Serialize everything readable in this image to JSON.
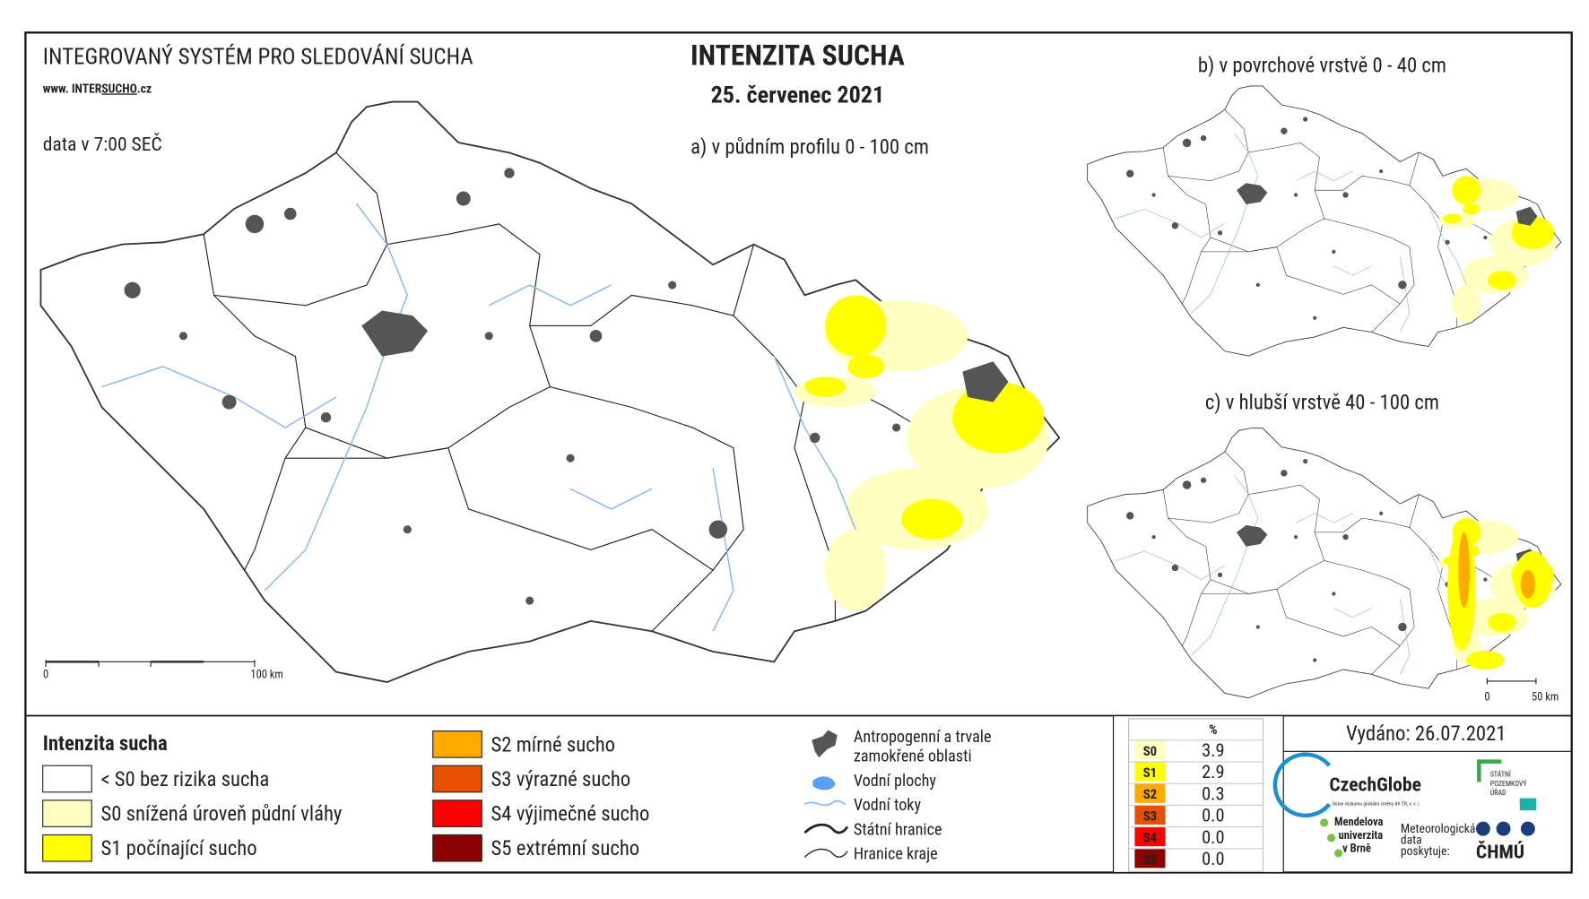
{
  "header": {
    "system": "INTEGROVANÝ SYSTÉM PRO SLEDOVÁNÍ SUCHA",
    "url_prefix": "www. INTER",
    "url_highlight": "SUCHO",
    "url_suffix": ".cz",
    "title": "INTENZITA SUCHA",
    "date": "25. červenec 2021",
    "time_note": "data v 7:00 SEČ"
  },
  "maps": [
    {
      "label": "a) v půdním profilu 0 - 100 cm",
      "scale_start": "0",
      "scale_end": "100 km"
    },
    {
      "label": "b) v povrchové vrstvě 0 - 40 cm"
    },
    {
      "label": "c) v hlubší vrstvě 40 - 100 cm",
      "scale_start": "0",
      "scale_end": "50 km"
    }
  ],
  "legend": {
    "title": "Intenzita sucha",
    "classes": [
      {
        "label": "< S0 bez rizika sucha",
        "color": "#ffffff"
      },
      {
        "label": "S0 snížená úroveň půdní vláhy",
        "color": "#ffffc0"
      },
      {
        "label": "S1 počínající sucho",
        "color": "#ffff00"
      },
      {
        "label": "S2 mírné sucho",
        "color": "#ffaa00"
      },
      {
        "label": "S3 výrazné sucho",
        "color": "#e65000"
      },
      {
        "label": "S4 výjimečné sucho",
        "color": "#ff0000"
      },
      {
        "label": "S5 extrémní sucho",
        "color": "#8b0000"
      }
    ]
  },
  "symbols": [
    {
      "lines": [
        "Antropogenní a trvale",
        "zamokřené oblasti"
      ]
    },
    {
      "lines": [
        "Vodní plochy"
      ]
    },
    {
      "lines": [
        "Vodní toky"
      ]
    },
    {
      "lines": [
        "Státní hranice"
      ]
    },
    {
      "lines": [
        "Hranice kraje"
      ]
    }
  ],
  "stats": {
    "header": "%",
    "rows": [
      {
        "class": "S0",
        "value": "3.9",
        "color": "#ffffc0"
      },
      {
        "class": "S1",
        "value": "2.9",
        "color": "#ffff00"
      },
      {
        "class": "S2",
        "value": "0.3",
        "color": "#ffaa00"
      },
      {
        "class": "S3",
        "value": "0.0",
        "color": "#e65000"
      },
      {
        "class": "S4",
        "value": "0.0",
        "color": "#ff0000"
      },
      {
        "class": "S5",
        "value": "0.0",
        "color": "#8b0000"
      }
    ]
  },
  "issued": "Vydáno: 26.07.2021",
  "logos": {
    "czechglobe": "CzechGlobe",
    "czechglobe_sub": "Ústav výzkumu globální změny AV ČR, v. v. i.",
    "spu": [
      "STÁTNÍ",
      "POZEMKOVÝ",
      "ÚŘAD"
    ],
    "mendelu": [
      "Mendelova",
      "univerzita",
      "v Brně"
    ],
    "meteo": [
      "Meteorologická",
      "data",
      "poskytuje:"
    ],
    "chmu": "ČHMÚ"
  }
}
